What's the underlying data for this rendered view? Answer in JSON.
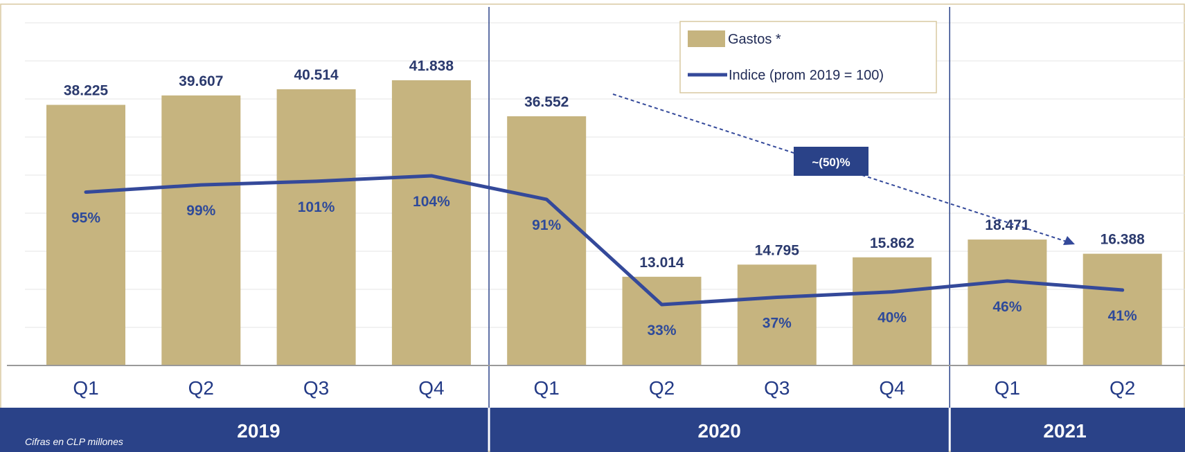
{
  "chart_data": {
    "type": "bar",
    "categories": [
      "Q1",
      "Q2",
      "Q3",
      "Q4",
      "Q1",
      "Q2",
      "Q3",
      "Q4",
      "Q1",
      "Q2"
    ],
    "years": [
      {
        "label": "2019",
        "quarters": 4
      },
      {
        "label": "2020",
        "quarters": 4
      },
      {
        "label": "2021",
        "quarters": 2
      }
    ],
    "series": [
      {
        "name": "Gastos *",
        "type": "bar",
        "values": [
          38225,
          39607,
          40514,
          41838,
          36552,
          13014,
          14795,
          15862,
          18471,
          16388
        ],
        "labels": [
          "38.225",
          "39.607",
          "40.514",
          "41.838",
          "36.552",
          "13.014",
          "14.795",
          "15.862",
          "18.471",
          "16.388"
        ]
      },
      {
        "name": "Indice (prom 2019 = 100)",
        "type": "line",
        "values": [
          95,
          99,
          101,
          104,
          91,
          33,
          37,
          40,
          46,
          41
        ],
        "labels": [
          "95%",
          "99%",
          "101%",
          "104%",
          "91%",
          "33%",
          "37%",
          "40%",
          "46%",
          "41%"
        ]
      }
    ],
    "annotation": "~(50)%",
    "note": "Cifras en CLP millones",
    "ylim": [
      0,
      45000
    ],
    "grid": true,
    "legend_position": "top-center",
    "colors": {
      "bar": "#c6b47f",
      "line": "#34499a",
      "band": "#2a4288",
      "axis": "#999999",
      "grid": "#e4e4e4",
      "frame": "#d8c9a0"
    }
  }
}
